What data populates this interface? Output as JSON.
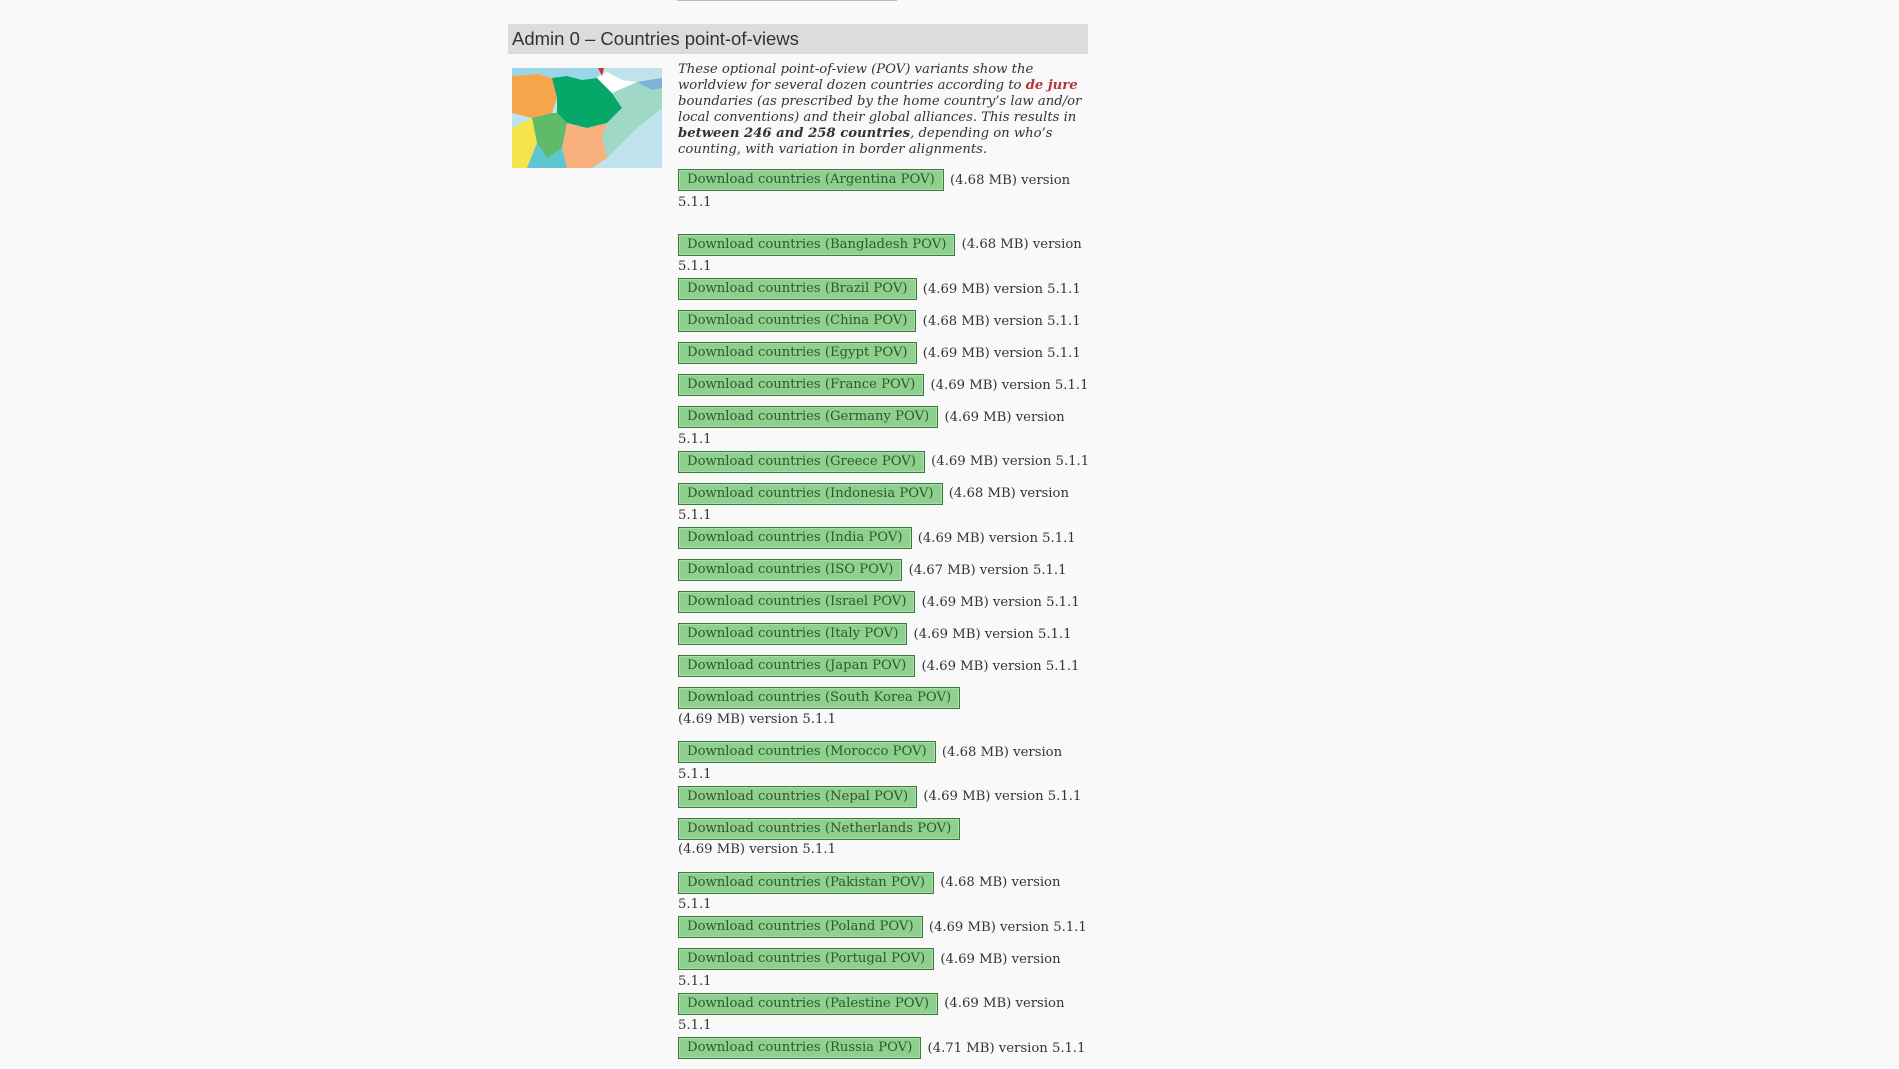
{
  "section": {
    "title": "Admin 0 – Countries point-of-views",
    "desc": {
      "part1": "These optional point-of-view (POV) variants show the worldview for several dozen countries according to ",
      "link": "de jure",
      "part2": " boundaries (as prescribed by the home country’s law and/or local conventions) and their global alliances. This results in ",
      "bold": "between 246 and 258 countries",
      "part3": ", depending on who’s counting, with variation in border alignments."
    }
  },
  "colors": {
    "button_bg": "#8fd08f",
    "button_border": "#3a7a3a",
    "link": "#b5343a",
    "header_bg": "#dcdcdc"
  },
  "downloads": [
    {
      "label": "Download countries (Argentina POV)",
      "meta": "(4.68 MB) version 5.1.1"
    },
    {
      "label": "Download countries (Bangladesh POV)",
      "meta": "(4.68 MB) version 5.1.1"
    },
    {
      "label": "Download countries (Brazil POV)",
      "meta": "(4.69 MB) version 5.1.1"
    },
    {
      "label": "Download countries (China POV)",
      "meta": "(4.68 MB) version 5.1.1"
    },
    {
      "label": "Download countries (Egypt POV)",
      "meta": "(4.69 MB) version 5.1.1"
    },
    {
      "label": "Download countries (France POV)",
      "meta": "(4.69 MB) version 5.1.1"
    },
    {
      "label": "Download countries (Germany POV)",
      "meta": "(4.69 MB) version 5.1.1"
    },
    {
      "label": "Download countries (Greece POV)",
      "meta": "(4.69 MB) version 5.1.1"
    },
    {
      "label": "Download countries (Indonesia POV)",
      "meta": "(4.68 MB) version 5.1.1"
    },
    {
      "label": "Download countries (India POV)",
      "meta": "(4.69 MB) version 5.1.1"
    },
    {
      "label": "Download countries (ISO POV)",
      "meta": "(4.67 MB) version 5.1.1"
    },
    {
      "label": "Download countries (Israel POV)",
      "meta": "(4.69 MB) version 5.1.1"
    },
    {
      "label": "Download countries (Italy POV)",
      "meta": "(4.69 MB) version 5.1.1"
    },
    {
      "label": "Download countries (Japan POV)",
      "meta": "(4.69 MB) version 5.1.1"
    },
    {
      "label": "Download countries (South Korea POV)",
      "meta": "(4.69 MB) version 5.1.1"
    },
    {
      "label": "Download countries (Morocco POV)",
      "meta": "(4.68 MB) version 5.1.1"
    },
    {
      "label": "Download countries (Nepal POV)",
      "meta": "(4.69 MB) version 5.1.1"
    },
    {
      "label": "Download countries (Netherlands POV)",
      "meta": "(4.69 MB) version 5.1.1"
    },
    {
      "label": "Download countries (Pakistan POV)",
      "meta": "(4.68 MB) version 5.1.1"
    },
    {
      "label": "Download countries (Poland POV)",
      "meta": "(4.69 MB) version 5.1.1"
    },
    {
      "label": "Download countries (Portugal POV)",
      "meta": "(4.69 MB) version 5.1.1"
    },
    {
      "label": "Download countries (Palestine POV)",
      "meta": "(4.69 MB) version 5.1.1"
    },
    {
      "label": "Download countries (Russia POV)",
      "meta": "(4.71 MB) version 5.1.1"
    }
  ]
}
